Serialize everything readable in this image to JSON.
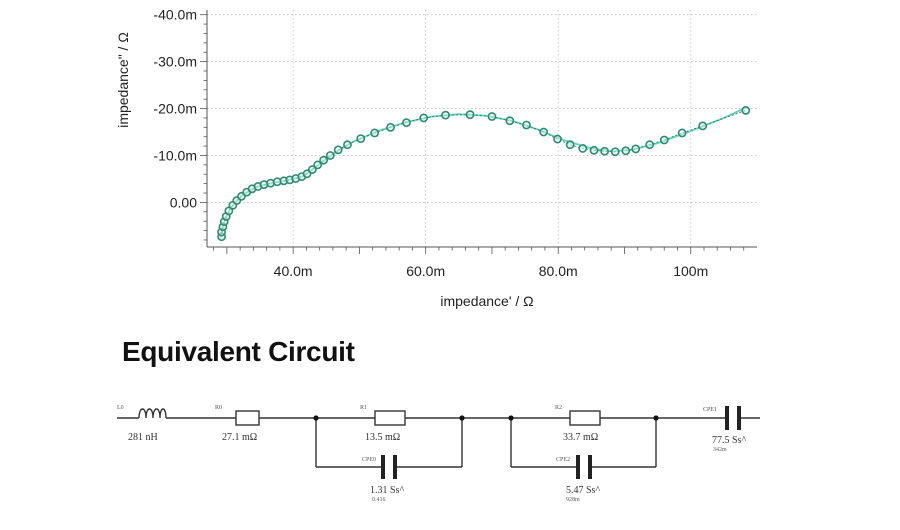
{
  "chart_data": {
    "type": "scatter",
    "xlabel": "impedance' / Ω",
    "ylabel": "impedance\" / Ω",
    "x_ticks": [
      "40.0m",
      "60.0m",
      "80.0m",
      "100m"
    ],
    "y_ticks": [
      "0.00",
      "-10.0m",
      "-20.0m",
      "-30.0m",
      "-40.0m"
    ],
    "xlim": [
      0.027,
      0.11
    ],
    "ylim": [
      9.5,
      -41
    ],
    "grid": true,
    "series": [
      {
        "style": "circles",
        "color": "#2e8b6f",
        "points": [
          [
            0.0292,
            7.3
          ],
          [
            0.0292,
            6.3
          ],
          [
            0.0294,
            5.2
          ],
          [
            0.0296,
            4.1
          ],
          [
            0.0299,
            3.0
          ],
          [
            0.0303,
            1.8
          ],
          [
            0.0309,
            0.6
          ],
          [
            0.0315,
            -0.4
          ],
          [
            0.0322,
            -1.3
          ],
          [
            0.033,
            -2.2
          ],
          [
            0.0338,
            -2.9
          ],
          [
            0.0347,
            -3.4
          ],
          [
            0.0356,
            -3.8
          ],
          [
            0.0366,
            -4.1
          ],
          [
            0.0376,
            -4.4
          ],
          [
            0.0386,
            -4.6
          ],
          [
            0.0395,
            -4.8
          ],
          [
            0.0404,
            -5.1
          ],
          [
            0.0413,
            -5.5
          ],
          [
            0.0421,
            -6.1
          ],
          [
            0.0429,
            -7.0
          ],
          [
            0.0437,
            -8.0
          ],
          [
            0.0446,
            -9.0
          ],
          [
            0.0456,
            -10.0
          ],
          [
            0.0468,
            -11.2
          ],
          [
            0.0482,
            -12.3
          ],
          [
            0.0502,
            -13.6
          ],
          [
            0.0523,
            -14.8
          ],
          [
            0.0547,
            -16.0
          ],
          [
            0.0571,
            -17.0
          ],
          [
            0.0597,
            -18.0
          ],
          [
            0.063,
            -18.6
          ],
          [
            0.0667,
            -18.7
          ],
          [
            0.07,
            -18.3
          ],
          [
            0.0727,
            -17.4
          ],
          [
            0.0752,
            -16.5
          ],
          [
            0.0778,
            -15.0
          ],
          [
            0.0799,
            -13.5
          ],
          [
            0.0818,
            -12.3
          ],
          [
            0.0837,
            -11.5
          ],
          [
            0.0854,
            -11.1
          ],
          [
            0.087,
            -10.9
          ],
          [
            0.0886,
            -10.8
          ],
          [
            0.0902,
            -11.0
          ],
          [
            0.0917,
            -11.4
          ],
          [
            0.0938,
            -12.3
          ],
          [
            0.096,
            -13.3
          ],
          [
            0.0987,
            -14.8
          ],
          [
            0.1018,
            -16.3
          ],
          [
            0.1083,
            -19.6
          ]
        ]
      },
      {
        "style": "line",
        "color": "#5fd3c4",
        "points": [
          [
            0.029,
            7.6
          ],
          [
            0.0295,
            4.5
          ],
          [
            0.0305,
            1.3
          ],
          [
            0.0322,
            -1.4
          ],
          [
            0.0345,
            -3.3
          ],
          [
            0.037,
            -4.2
          ],
          [
            0.0395,
            -4.8
          ],
          [
            0.0415,
            -5.6
          ],
          [
            0.0435,
            -7.6
          ],
          [
            0.046,
            -10.3
          ],
          [
            0.049,
            -12.9
          ],
          [
            0.053,
            -15.3
          ],
          [
            0.057,
            -17.1
          ],
          [
            0.061,
            -18.3
          ],
          [
            0.065,
            -18.8
          ],
          [
            0.069,
            -18.5
          ],
          [
            0.073,
            -17.4
          ],
          [
            0.077,
            -15.5
          ],
          [
            0.081,
            -13.2
          ],
          [
            0.085,
            -11.5
          ],
          [
            0.088,
            -10.9
          ],
          [
            0.091,
            -11.2
          ],
          [
            0.095,
            -12.6
          ],
          [
            0.1,
            -15.2
          ],
          [
            0.105,
            -18.0
          ],
          [
            0.1085,
            -20.3
          ]
        ]
      }
    ]
  },
  "circuit": {
    "title": "Equivalent Circuit",
    "l0_name": "L0",
    "l0_value": "281 nH",
    "r0_name": "R0",
    "r0_value": "27.1 mΩ",
    "r1_name": "R1",
    "r1_value": "13.5 mΩ",
    "cpe0_name": "CPE0",
    "cpe0_value": "1.31 Ss^",
    "cpe0_exp": "0.416",
    "r2_name": "R2",
    "r2_value": "33.7 mΩ",
    "cpe2_name": "CPE2",
    "cpe2_value": "5.47 Ss^",
    "cpe2_exp": "928m",
    "cpe1_name": "CPE1",
    "cpe1_value": "77.5 Ss^",
    "cpe1_exp": "342m"
  }
}
